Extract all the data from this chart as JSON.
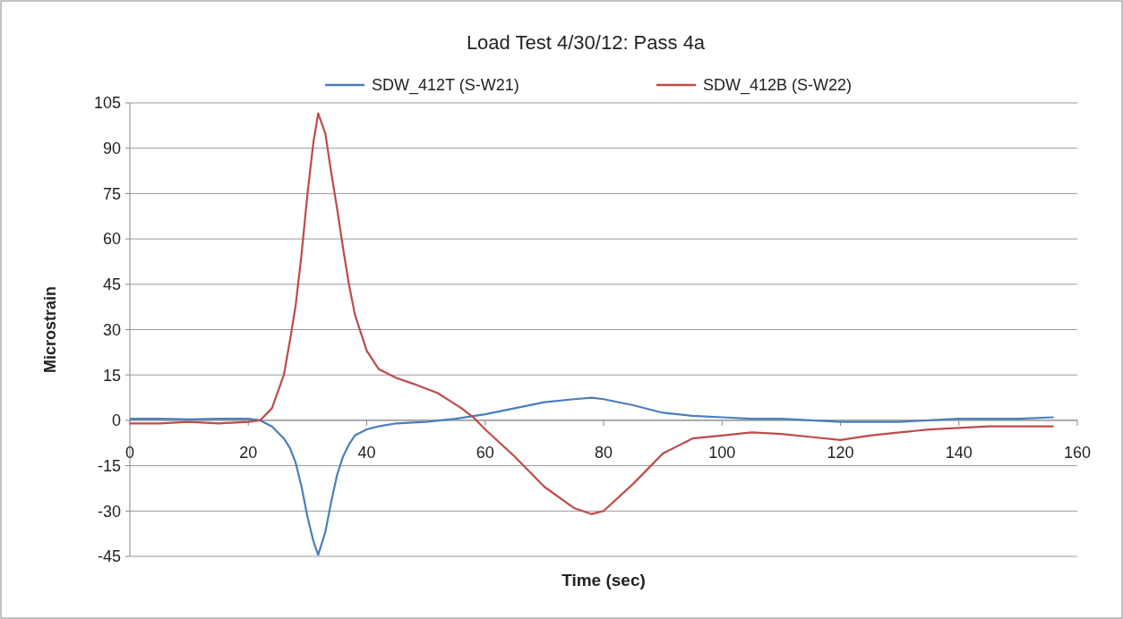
{
  "chart_data": {
    "type": "line",
    "title": "Load Test 4/30/12: Pass 4a",
    "xlabel": "Time (sec)",
    "ylabel": "Microstrain",
    "xlim": [
      0,
      160
    ],
    "xticks": [
      0,
      20,
      40,
      60,
      80,
      100,
      120,
      140,
      160
    ],
    "ylim": [
      -45,
      105
    ],
    "yticks": [
      -45,
      -30,
      -15,
      0,
      15,
      30,
      45,
      60,
      75,
      90,
      105
    ],
    "grid": "y",
    "legend": "top",
    "marker": "none",
    "line_style": "solid",
    "series": [
      {
        "name": "SDW_412T (S-W21)",
        "color": "#4a7ebb",
        "x": [
          0,
          5,
          10,
          15,
          20,
          22,
          24,
          26,
          27,
          28,
          29,
          30,
          31,
          31.8,
          33,
          34,
          35,
          36,
          37,
          38,
          40,
          42,
          45,
          50,
          55,
          60,
          65,
          70,
          75,
          78,
          80,
          85,
          90,
          95,
          100,
          105,
          110,
          115,
          120,
          125,
          130,
          135,
          140,
          145,
          150,
          156
        ],
        "values": [
          0.5,
          0.5,
          0.3,
          0.5,
          0.5,
          0,
          -2,
          -6,
          -9,
          -14,
          -22,
          -32,
          -40,
          -44.5,
          -37,
          -27,
          -18,
          -12,
          -8,
          -5,
          -3,
          -2,
          -1,
          -0.5,
          0.5,
          2,
          4,
          6,
          7,
          7.5,
          7,
          5,
          2.5,
          1.5,
          1,
          0.5,
          0.5,
          0,
          -0.5,
          -0.5,
          -0.5,
          0,
          0.5,
          0.5,
          0.5,
          1
        ]
      },
      {
        "name": "SDW_412B (S-W22)",
        "color": "#be4b48",
        "x": [
          0,
          5,
          10,
          15,
          20,
          22,
          24,
          26,
          27,
          28,
          29,
          30,
          31,
          31.8,
          33,
          34,
          35,
          36,
          37,
          38,
          40,
          42,
          45,
          48,
          52,
          56,
          58,
          60,
          65,
          70,
          75,
          78,
          80,
          85,
          90,
          95,
          100,
          105,
          110,
          115,
          120,
          125,
          130,
          135,
          140,
          145,
          150,
          156
        ],
        "values": [
          -1,
          -1,
          -0.5,
          -1,
          -0.5,
          0,
          4,
          15,
          26,
          38,
          55,
          75,
          92,
          101.5,
          95,
          82,
          70,
          57,
          45,
          35,
          23,
          17,
          14,
          12,
          9,
          4,
          1,
          -3,
          -12,
          -22,
          -29,
          -31,
          -30,
          -21,
          -11,
          -6,
          -5,
          -4,
          -4.5,
          -5.5,
          -6.5,
          -5,
          -4,
          -3,
          -2.5,
          -2,
          -2,
          -2
        ]
      }
    ]
  }
}
